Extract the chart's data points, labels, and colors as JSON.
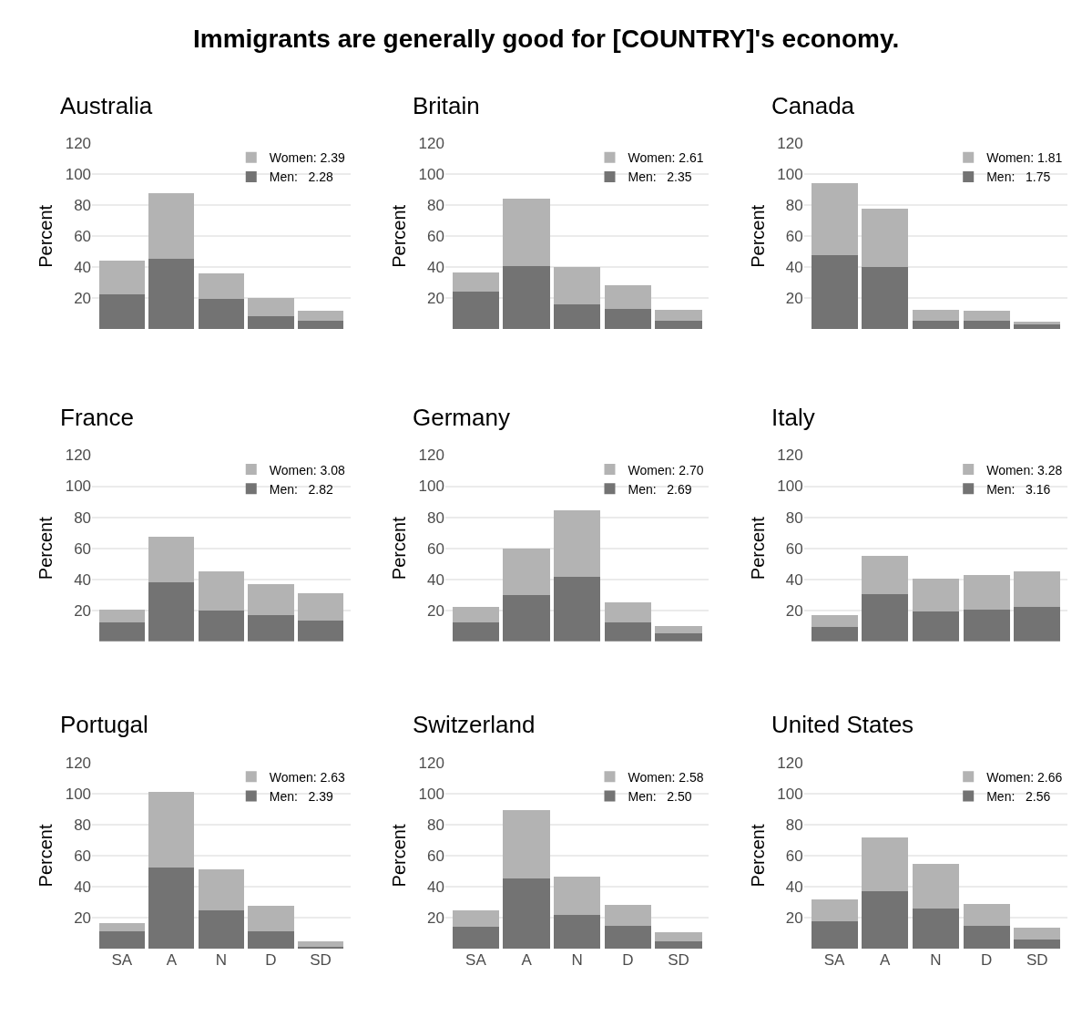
{
  "chart_data": [
    {
      "type": "bar",
      "title": "Australia",
      "annotations": [
        "Immigrants are generally good for [COUNTRY]'s economy."
      ],
      "ylabel": "Percent",
      "categories": [
        null,
        null,
        null,
        null,
        null
      ],
      "stacked": true,
      "ylim": [
        0,
        120
      ],
      "yticks": [
        20,
        40,
        60,
        80,
        100,
        120
      ],
      "grid": "y",
      "legend": "top right",
      "series": [
        {
          "name": "Men:   2.28",
          "color": "#737373",
          "values": [
            22.5,
            45.5,
            19.5,
            8.5,
            5.5
          ]
        },
        {
          "name": "Women: 2.39",
          "color": "#b3b3b3",
          "values": [
            22,
            42.5,
            16.5,
            11.5,
            6.5
          ]
        }
      ]
    },
    {
      "type": "bar",
      "title": "Britain",
      "ylabel": "Percent",
      "categories": [
        null,
        null,
        null,
        null,
        null
      ],
      "stacked": true,
      "ylim": [
        0,
        120
      ],
      "yticks": [
        20,
        40,
        60,
        80,
        100,
        120
      ],
      "grid": "y",
      "legend": "top right",
      "series": [
        {
          "name": "Men:   2.35",
          "color": "#737373",
          "values": [
            24.5,
            41,
            16,
            13.5,
            5.5
          ]
        },
        {
          "name": "Women: 2.61",
          "color": "#b3b3b3",
          "values": [
            12,
            43,
            24,
            15,
            7
          ]
        }
      ]
    },
    {
      "type": "bar",
      "title": "Canada",
      "ylabel": "Percent",
      "categories": [
        null,
        null,
        null,
        null,
        null
      ],
      "stacked": true,
      "ylim": [
        0,
        120
      ],
      "yticks": [
        20,
        40,
        60,
        80,
        100,
        120
      ],
      "grid": "y",
      "legend": "top right",
      "series": [
        {
          "name": "Men:   1.75",
          "color": "#737373",
          "values": [
            48,
            40,
            5.5,
            5.5,
            3
          ]
        },
        {
          "name": "Women: 1.81",
          "color": "#b3b3b3",
          "values": [
            46,
            37.5,
            7,
            6.5,
            2
          ]
        }
      ]
    },
    {
      "type": "bar",
      "title": "France",
      "ylabel": "Percent",
      "categories": [
        null,
        null,
        null,
        null,
        null
      ],
      "stacked": true,
      "ylim": [
        0,
        120
      ],
      "yticks": [
        20,
        40,
        60,
        80,
        100,
        120
      ],
      "grid": "y",
      "legend": "top right",
      "series": [
        {
          "name": "Men:   2.82",
          "color": "#737373",
          "values": [
            12.5,
            38,
            20,
            17,
            13.5
          ]
        },
        {
          "name": "Women: 3.08",
          "color": "#b3b3b3",
          "values": [
            8,
            29.5,
            25,
            20,
            17.5
          ]
        }
      ]
    },
    {
      "type": "bar",
      "title": "Germany",
      "ylabel": "Percent",
      "categories": [
        null,
        null,
        null,
        null,
        null
      ],
      "stacked": true,
      "ylim": [
        0,
        120
      ],
      "yticks": [
        20,
        40,
        60,
        80,
        100,
        120
      ],
      "grid": "y",
      "legend": "top right",
      "series": [
        {
          "name": "Men:   2.69",
          "color": "#737373",
          "values": [
            12,
            30,
            41.5,
            12.5,
            5
          ]
        },
        {
          "name": "Women: 2.70",
          "color": "#b3b3b3",
          "values": [
            10.5,
            30,
            43,
            12.5,
            5
          ]
        }
      ]
    },
    {
      "type": "bar",
      "title": "Italy",
      "ylabel": "Percent",
      "categories": [
        null,
        null,
        null,
        null,
        null
      ],
      "stacked": true,
      "ylim": [
        0,
        120
      ],
      "yticks": [
        20,
        40,
        60,
        80,
        100,
        120
      ],
      "grid": "y",
      "legend": "top right",
      "series": [
        {
          "name": "Men:   3.16",
          "color": "#737373",
          "values": [
            9.5,
            30.5,
            19.5,
            20.5,
            22
          ]
        },
        {
          "name": "Women: 3.28",
          "color": "#b3b3b3",
          "values": [
            7.5,
            24.5,
            21,
            22.5,
            23
          ]
        }
      ]
    },
    {
      "type": "bar",
      "title": "Portugal",
      "ylabel": "Percent",
      "categories": [
        "SA",
        "A",
        "N",
        "D",
        "SD"
      ],
      "stacked": true,
      "ylim": [
        0,
        120
      ],
      "yticks": [
        20,
        40,
        60,
        80,
        100,
        120
      ],
      "grid": "y",
      "legend": "top right",
      "series": [
        {
          "name": "Men:   2.39",
          "color": "#737373",
          "values": [
            11,
            52.5,
            24.5,
            11,
            1.5
          ]
        },
        {
          "name": "Women: 2.63",
          "color": "#b3b3b3",
          "values": [
            5.5,
            48.5,
            26.5,
            16.5,
            3
          ]
        }
      ]
    },
    {
      "type": "bar",
      "title": "Switzerland",
      "ylabel": "Percent",
      "categories": [
        "SA",
        "A",
        "N",
        "D",
        "SD"
      ],
      "stacked": true,
      "ylim": [
        0,
        120
      ],
      "yticks": [
        20,
        40,
        60,
        80,
        100,
        120
      ],
      "grid": "y",
      "legend": "top right",
      "series": [
        {
          "name": "Men:   2.50",
          "color": "#737373",
          "values": [
            14,
            45.5,
            22,
            15,
            4.5
          ]
        },
        {
          "name": "Women: 2.58",
          "color": "#b3b3b3",
          "values": [
            11,
            44,
            24.5,
            13.5,
            6
          ]
        }
      ]
    },
    {
      "type": "bar",
      "title": "United States",
      "ylabel": "Percent",
      "categories": [
        "SA",
        "A",
        "N",
        "D",
        "SD"
      ],
      "stacked": true,
      "ylim": [
        0,
        120
      ],
      "yticks": [
        20,
        40,
        60,
        80,
        100,
        120
      ],
      "grid": "y",
      "legend": "top right",
      "series": [
        {
          "name": "Men:   2.56",
          "color": "#737373",
          "values": [
            17.5,
            37,
            26,
            15,
            6
          ]
        },
        {
          "name": "Women: 2.66",
          "color": "#b3b3b3",
          "values": [
            14.5,
            34.5,
            28.5,
            14,
            7.5
          ]
        }
      ]
    }
  ]
}
